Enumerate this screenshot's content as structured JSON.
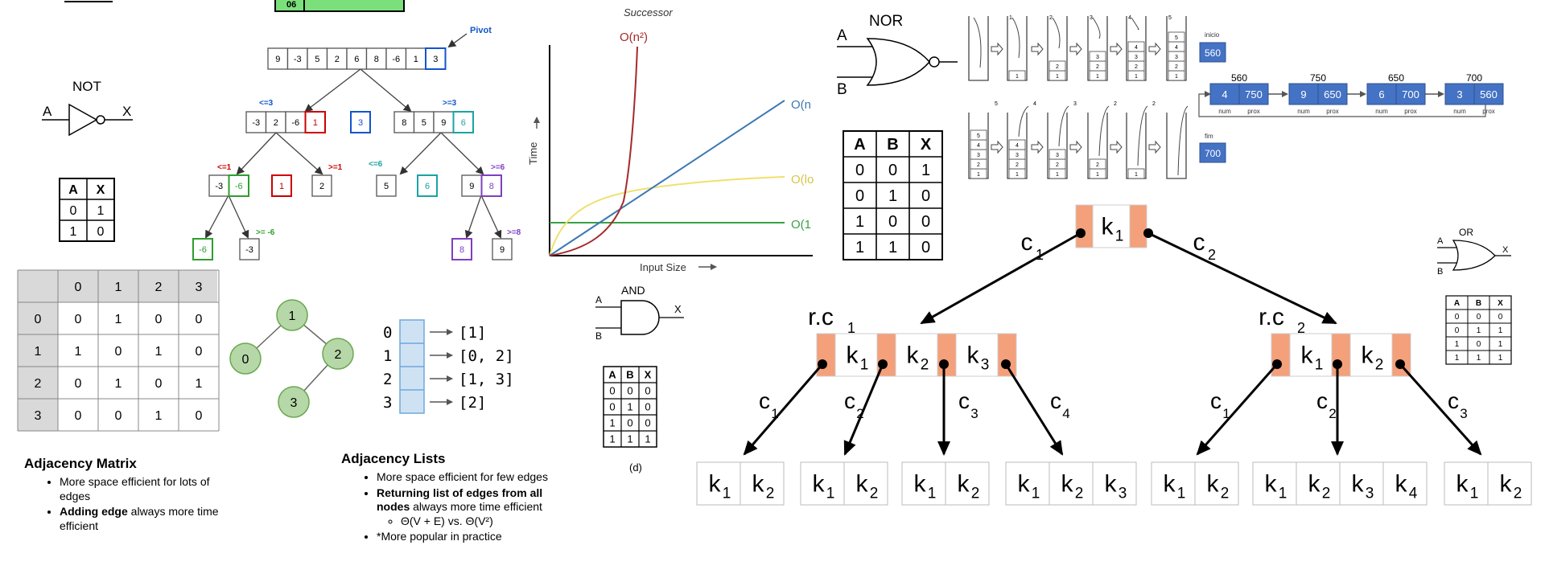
{
  "top_box_label": "06",
  "not_gate": {
    "title": "NOT",
    "in": "A",
    "out": "X",
    "table": {
      "headers": [
        "A",
        "X"
      ],
      "rows": [
        [
          "0",
          "1"
        ],
        [
          "1",
          "0"
        ]
      ]
    }
  },
  "adjacency_matrix": {
    "col_headers": [
      "0",
      "1",
      "2",
      "3"
    ],
    "row_headers": [
      "0",
      "1",
      "2",
      "3"
    ],
    "rows": [
      [
        "0",
        "1",
        "0",
        "0"
      ],
      [
        "1",
        "0",
        "1",
        "0"
      ],
      [
        "0",
        "1",
        "0",
        "1"
      ],
      [
        "0",
        "0",
        "1",
        "0"
      ]
    ]
  },
  "matrix_notes": {
    "title": "Adjacency Matrix",
    "bullet1": "More space efficient for lots of edges",
    "bullet2_bold": "Adding edge",
    "bullet2_rest": " always more time efficient"
  },
  "graph": {
    "nodes": [
      "1",
      "0",
      "2",
      "3"
    ]
  },
  "adj_list": {
    "rows": [
      {
        "idx": "0",
        "val": "[1]"
      },
      {
        "idx": "1",
        "val": "[0, 2]"
      },
      {
        "idx": "2",
        "val": "[1, 3]"
      },
      {
        "idx": "3",
        "val": "[2]"
      }
    ]
  },
  "list_notes": {
    "title": "Adjacency Lists",
    "bullet1": "More space efficient for few edges",
    "bullet2_bold": "Returning list of edges from all nodes",
    "bullet2_rest": " always more time efficient",
    "sub": "Θ(V + E) vs. Θ(V²)",
    "bullet3": "*More popular in practice"
  },
  "quicksort": {
    "pivot_label": "Pivot",
    "top": [
      "9",
      "-3",
      "5",
      "2",
      "6",
      "8",
      "-6",
      "1",
      "3"
    ],
    "left": [
      "-3",
      "2",
      "-6",
      "1"
    ],
    "mid": "3",
    "right": [
      "8",
      "5",
      "9",
      "6"
    ],
    "le3": "<=3",
    "ge3": ">=3",
    "le1": "<=1",
    "ge1": ">=1",
    "le6": "<=6",
    "ge6": ">=6",
    "ll": [
      "-3",
      "-6"
    ],
    "lm": "1",
    "lr": "2",
    "rl": "5",
    "rm": "6",
    "rr": [
      "9",
      "8"
    ],
    "ge_m6": ">= -6",
    "ge8": ">=8",
    "lll": "-6",
    "llr": "-3",
    "rrl": "8",
    "rrr": "9"
  },
  "complexity": {
    "title": "Successor",
    "xlabel": "Input Size",
    "ylabel": "Time",
    "n2": "O(n²)",
    "n": "O(n",
    "log": "O(lo",
    "one": "O(1"
  },
  "and_gate": {
    "title": "AND",
    "in1": "A",
    "in2": "B",
    "out": "X",
    "table": {
      "headers": [
        "A",
        "B",
        "X"
      ],
      "rows": [
        [
          "0",
          "0",
          "0"
        ],
        [
          "0",
          "1",
          "0"
        ],
        [
          "1",
          "0",
          "0"
        ],
        [
          "1",
          "1",
          "1"
        ]
      ]
    },
    "caption": "(d)"
  },
  "nor_gate": {
    "title": "NOR",
    "in1": "A",
    "in2": "B",
    "table": {
      "headers": [
        "A",
        "B",
        "X"
      ],
      "rows": [
        [
          "0",
          "0",
          "1"
        ],
        [
          "0",
          "1",
          "0"
        ],
        [
          "1",
          "0",
          "0"
        ],
        [
          "1",
          "1",
          "0"
        ]
      ]
    }
  },
  "linked_list": {
    "inicio_label": "inicio",
    "inicio_val": "560",
    "fim_label": "fim",
    "fim_val": "700",
    "nodes": [
      {
        "addr": "560",
        "num": "4",
        "prox": "750"
      },
      {
        "addr": "750",
        "num": "9",
        "prox": "650"
      },
      {
        "addr": "650",
        "num": "6",
        "prox": "700"
      },
      {
        "addr": "700",
        "num": "3",
        "prox": "560"
      }
    ],
    "num_label": "num",
    "prox_label": "prox"
  },
  "stack_push": {
    "counts": [
      "1",
      "2",
      "3",
      "4",
      "5"
    ]
  },
  "stack_pop": {
    "counts": [
      "5",
      "4",
      "3",
      "2",
      "2"
    ]
  },
  "btree": {
    "c1": "c",
    "c2": "c",
    "s1": "1",
    "s2": "2",
    "s3": "3",
    "s4": "4",
    "k": "k",
    "rc1": "r.c",
    "rc2": "r.c"
  },
  "or_gate": {
    "title": "OR",
    "in1": "A",
    "in2": "B",
    "out": "X",
    "table": {
      "headers": [
        "A",
        "B",
        "X"
      ],
      "rows": [
        [
          "0",
          "0",
          "0"
        ],
        [
          "0",
          "1",
          "1"
        ],
        [
          "1",
          "0",
          "1"
        ],
        [
          "1",
          "1",
          "1"
        ]
      ]
    }
  }
}
